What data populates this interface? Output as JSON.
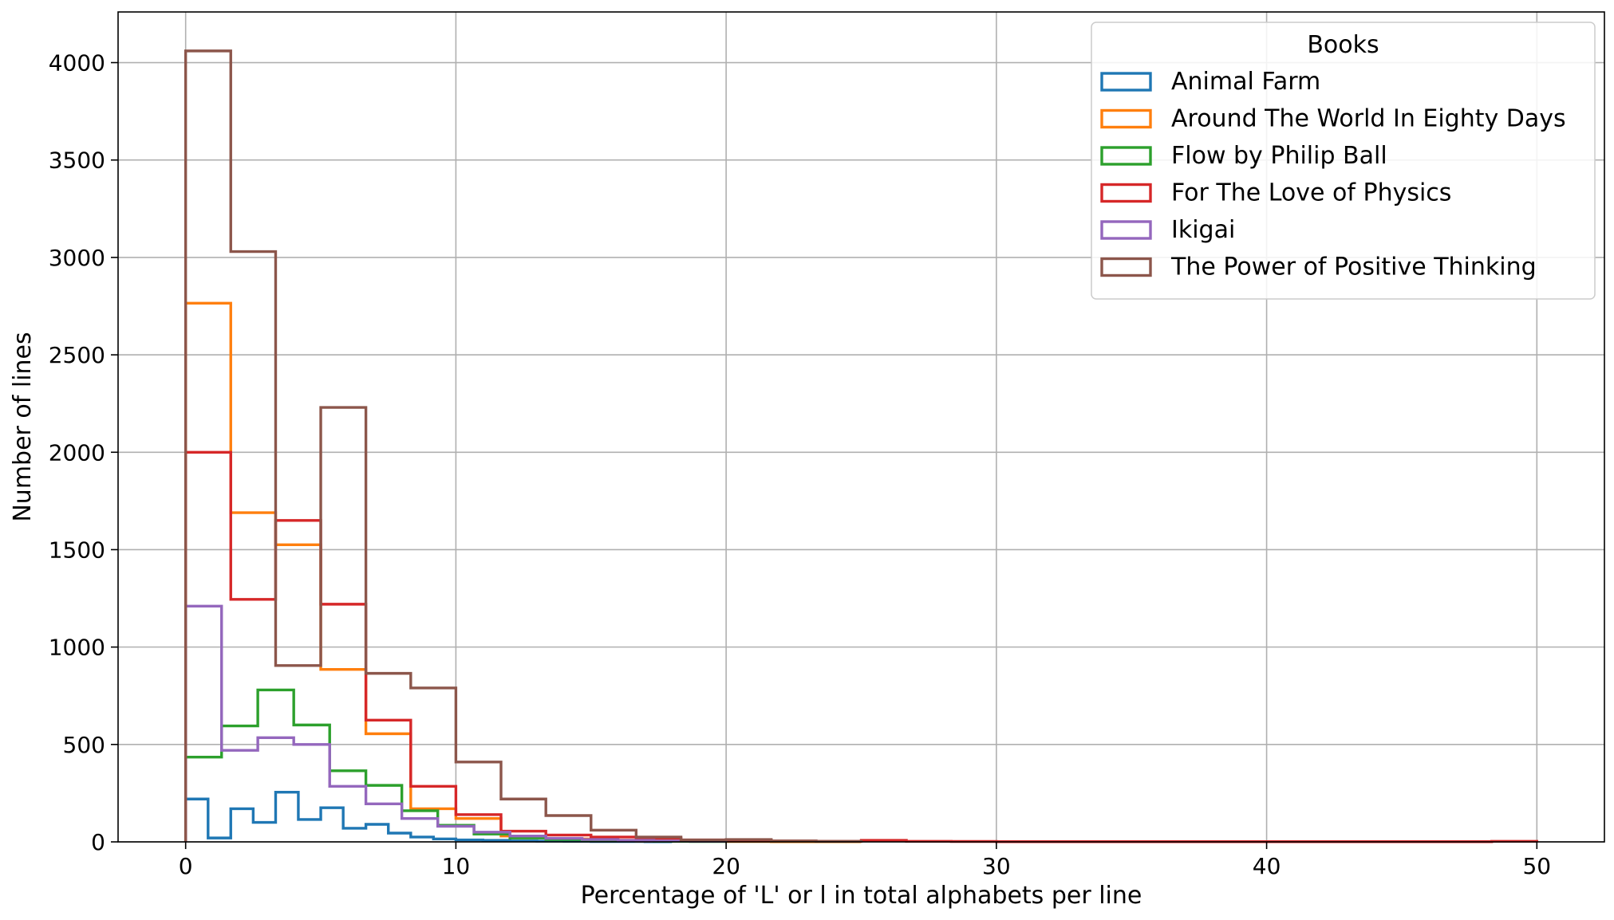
{
  "chart_data": {
    "type": "histogram-step",
    "xlabel": "Percentage of 'L' or l in total alphabets per line",
    "ylabel": "Number of lines",
    "xlim": [
      -2.5,
      52.5
    ],
    "ylim": [
      0,
      4260
    ],
    "xticks": [
      0,
      10,
      20,
      30,
      40,
      50
    ],
    "yticks": [
      0,
      500,
      1000,
      1500,
      2000,
      2500,
      3000,
      3500,
      4000
    ],
    "grid": true,
    "legend": {
      "title": "Books",
      "placement": "top-right"
    },
    "series": [
      {
        "name": "Animal Farm",
        "color": "#1f77b4",
        "edges": [
          0,
          0.83,
          1.67,
          2.5,
          3.33,
          4.17,
          5,
          5.83,
          6.67,
          7.5,
          8.33,
          9.17,
          10,
          11,
          12,
          13,
          14,
          15,
          16,
          17,
          18
        ],
        "counts": [
          220,
          20,
          170,
          100,
          255,
          115,
          175,
          70,
          90,
          45,
          25,
          15,
          10,
          8,
          5,
          4,
          3,
          2,
          2,
          1
        ]
      },
      {
        "name": "Around The World In Eighty Days",
        "color": "#ff7f0e",
        "edges": [
          0,
          1.67,
          3.33,
          5,
          6.67,
          8.33,
          10,
          11.67,
          13.33,
          15,
          16.67,
          18.33,
          20,
          21.67,
          23.33,
          25
        ],
        "counts": [
          2765,
          1690,
          1525,
          885,
          555,
          170,
          120,
          30,
          15,
          8,
          4,
          3,
          2,
          1,
          1
        ]
      },
      {
        "name": "Flow by Philip Ball",
        "color": "#2ca02c",
        "edges": [
          0,
          1.33,
          2.67,
          4,
          5.33,
          6.67,
          8,
          9.33,
          10.67,
          12,
          13.33,
          14.67,
          16,
          17.33,
          18.67,
          20
        ],
        "counts": [
          435,
          595,
          780,
          600,
          365,
          290,
          160,
          85,
          40,
          20,
          12,
          8,
          5,
          3,
          2
        ]
      },
      {
        "name": "For The Love of Physics",
        "color": "#d62728",
        "edges": [
          0,
          1.67,
          3.33,
          5,
          6.67,
          8.33,
          10,
          11.67,
          13.33,
          15,
          16.67,
          18.33,
          20,
          21.67,
          23.33,
          25,
          26.67,
          28.33,
          30,
          48.33,
          50
        ],
        "counts": [
          2000,
          1245,
          1650,
          1220,
          625,
          285,
          140,
          55,
          35,
          25,
          18,
          10,
          8,
          5,
          3,
          8,
          3,
          2,
          1,
          3
        ]
      },
      {
        "name": "Ikigai",
        "color": "#9467bd",
        "edges": [
          0,
          1.33,
          2.67,
          4,
          5.33,
          6.67,
          8,
          9.33,
          10.67,
          12,
          13.33,
          14.67,
          16,
          17.33,
          18.67,
          20
        ],
        "counts": [
          1210,
          470,
          535,
          500,
          285,
          195,
          120,
          80,
          50,
          30,
          18,
          12,
          8,
          5,
          3
        ]
      },
      {
        "name": "The Power of Positive Thinking",
        "color": "#8c564b",
        "edges": [
          0,
          1.67,
          3.33,
          5,
          6.67,
          8.33,
          10,
          11.67,
          13.33,
          15,
          16.67,
          18.33,
          20,
          21.67,
          23.33,
          25
        ],
        "counts": [
          4060,
          3030,
          905,
          2230,
          865,
          790,
          410,
          220,
          135,
          60,
          25,
          10,
          12,
          5,
          3
        ]
      }
    ]
  }
}
